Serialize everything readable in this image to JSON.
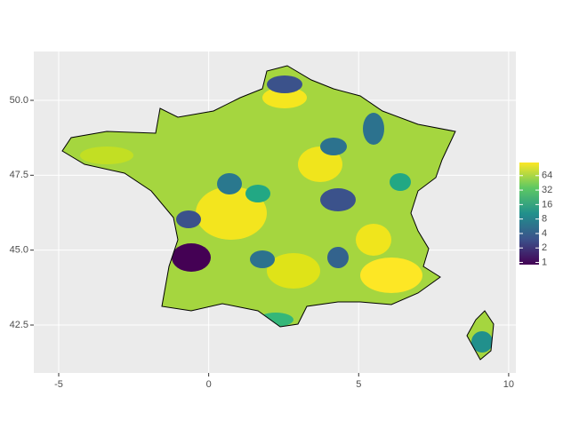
{
  "chart_data": {
    "type": "map",
    "xlim": [
      -5.83,
      10.24
    ],
    "ylim": [
      40.9,
      51.63
    ],
    "xticks": [
      -5,
      0,
      5,
      10
    ],
    "yticks": [
      42.5,
      {
        "value": 45,
        "label": "45.0"
      },
      47.5,
      {
        "value": 50,
        "label": "50.0"
      }
    ],
    "grid": true,
    "legend": {
      "position": "right",
      "scale": "log2",
      "lim": [
        0.9,
        120
      ],
      "ticks": [
        1,
        2,
        4,
        8,
        16,
        32,
        64
      ],
      "palette": [
        "#440154",
        "#3b528b",
        "#21908c",
        "#5dc863",
        "#fde725"
      ]
    }
  }
}
